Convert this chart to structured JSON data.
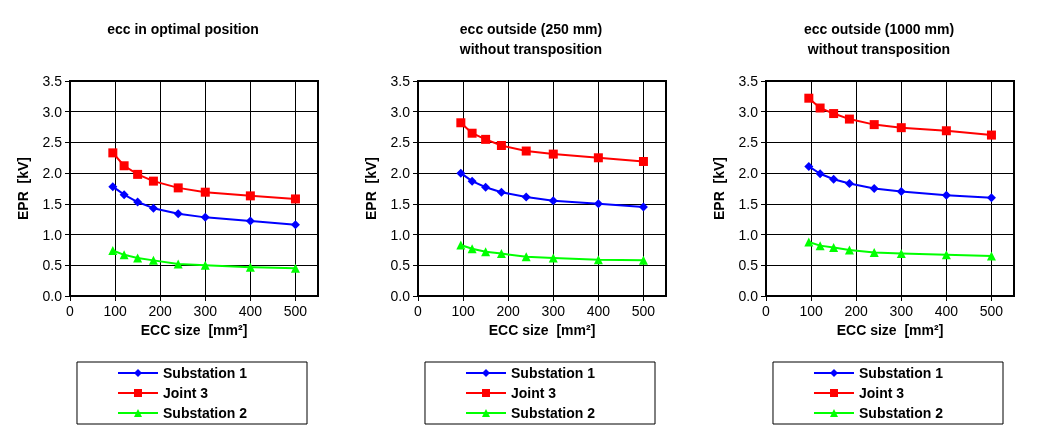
{
  "chart_data": [
    {
      "type": "line",
      "title": "ecc in optimal position",
      "xlabel": "ECC size  [mm²]",
      "ylabel": "EPR  [kV]",
      "x": [
        95,
        120,
        150,
        185,
        240,
        300,
        400,
        500
      ],
      "xlim": [
        0,
        550
      ],
      "xticks": [
        0,
        100,
        200,
        300,
        400,
        500
      ],
      "ylim": [
        0,
        3.5
      ],
      "yticks": [
        {
          "value": 0,
          "label": "0.0"
        },
        {
          "value": 0.5,
          "label": "0.5"
        },
        {
          "value": 1,
          "label": "1.0"
        },
        {
          "value": 1.5,
          "label": "1.5"
        },
        {
          "value": 2,
          "label": "2.0"
        },
        {
          "value": 2.5,
          "label": "2.5"
        },
        {
          "value": 3,
          "label": "3.0"
        },
        {
          "value": 3.5,
          "label": "3.5"
        }
      ],
      "grid": true,
      "legend": "bottom",
      "series": [
        {
          "name": "Substation 1",
          "color": "#0000ff",
          "marker": "diamond",
          "values": [
            1.78,
            1.65,
            1.53,
            1.43,
            1.34,
            1.28,
            1.22,
            1.16
          ]
        },
        {
          "name": "Joint 3",
          "color": "#ff0000",
          "marker": "square",
          "values": [
            2.33,
            2.12,
            1.98,
            1.87,
            1.76,
            1.69,
            1.63,
            1.58
          ]
        },
        {
          "name": "Substation 2",
          "color": "#00ff00",
          "marker": "triangle",
          "values": [
            0.74,
            0.67,
            0.62,
            0.58,
            0.52,
            0.5,
            0.47,
            0.45
          ]
        }
      ]
    },
    {
      "type": "line",
      "title": "ecc outside (250 mm)\nwithout transposition",
      "xlabel": "ECC size  [mm²]",
      "ylabel": "EPR  [kV]",
      "x": [
        95,
        120,
        150,
        185,
        240,
        300,
        400,
        500
      ],
      "xlim": [
        0,
        550
      ],
      "xticks": [
        0,
        100,
        200,
        300,
        400,
        500
      ],
      "ylim": [
        0,
        3.5
      ],
      "yticks": [
        {
          "value": 0,
          "label": "0.0"
        },
        {
          "value": 0.5,
          "label": "0.5"
        },
        {
          "value": 1,
          "label": "1.0"
        },
        {
          "value": 1.5,
          "label": "1.5"
        },
        {
          "value": 2,
          "label": "2.0"
        },
        {
          "value": 2.5,
          "label": "2.5"
        },
        {
          "value": 3,
          "label": "3.0"
        },
        {
          "value": 3.5,
          "label": "3.5"
        }
      ],
      "grid": true,
      "legend": "bottom",
      "series": [
        {
          "name": "Substation 1",
          "color": "#0000ff",
          "marker": "diamond",
          "values": [
            2.0,
            1.87,
            1.77,
            1.69,
            1.61,
            1.55,
            1.5,
            1.45
          ]
        },
        {
          "name": "Joint 3",
          "color": "#ff0000",
          "marker": "square",
          "values": [
            2.82,
            2.65,
            2.55,
            2.45,
            2.36,
            2.31,
            2.25,
            2.19
          ]
        },
        {
          "name": "Substation 2",
          "color": "#00ff00",
          "marker": "triangle",
          "values": [
            0.83,
            0.77,
            0.72,
            0.69,
            0.64,
            0.62,
            0.59,
            0.58
          ]
        }
      ]
    },
    {
      "type": "line",
      "title": "ecc outside (1000 mm)\nwithout transposition",
      "xlabel": "ECC size  [mm²]",
      "ylabel": "EPR  [kV]",
      "x": [
        95,
        120,
        150,
        185,
        240,
        300,
        400,
        500
      ],
      "xlim": [
        0,
        550
      ],
      "xticks": [
        0,
        100,
        200,
        300,
        400,
        500
      ],
      "ylim": [
        0,
        3.5
      ],
      "yticks": [
        {
          "value": 0,
          "label": "0.0"
        },
        {
          "value": 0.5,
          "label": "0.5"
        },
        {
          "value": 1,
          "label": "1.0"
        },
        {
          "value": 1.5,
          "label": "1.5"
        },
        {
          "value": 2,
          "label": "2.0"
        },
        {
          "value": 2.5,
          "label": "2.5"
        },
        {
          "value": 3,
          "label": "3.0"
        },
        {
          "value": 3.5,
          "label": "3.5"
        }
      ],
      "grid": true,
      "legend": "bottom",
      "series": [
        {
          "name": "Substation 1",
          "color": "#0000ff",
          "marker": "diamond",
          "values": [
            2.11,
            1.99,
            1.9,
            1.83,
            1.75,
            1.7,
            1.64,
            1.6
          ]
        },
        {
          "name": "Joint 3",
          "color": "#ff0000",
          "marker": "square",
          "values": [
            3.22,
            3.06,
            2.97,
            2.88,
            2.79,
            2.74,
            2.69,
            2.62
          ]
        },
        {
          "name": "Substation 2",
          "color": "#00ff00",
          "marker": "triangle",
          "values": [
            0.88,
            0.82,
            0.79,
            0.75,
            0.71,
            0.69,
            0.67,
            0.65
          ]
        }
      ]
    }
  ]
}
